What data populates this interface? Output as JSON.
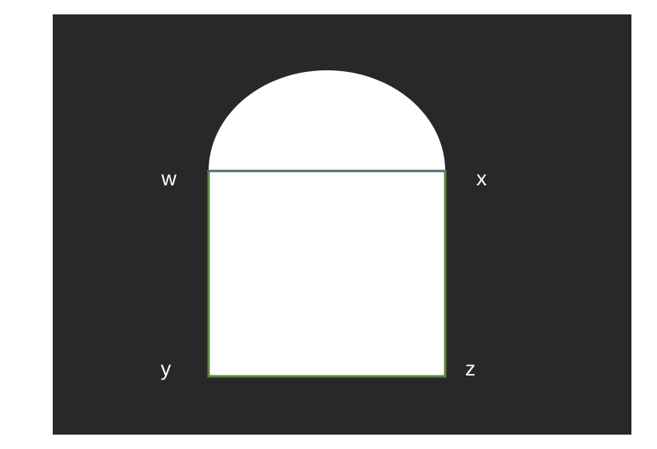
{
  "diagram": {
    "background_color": "#282828",
    "shape_fill": "#ffffff",
    "square_outline_color": "#5a8a3a",
    "diameter_line_color": "#4a6a80",
    "vertices": {
      "w": "w",
      "x": "x",
      "y": "y",
      "z": "z"
    }
  }
}
